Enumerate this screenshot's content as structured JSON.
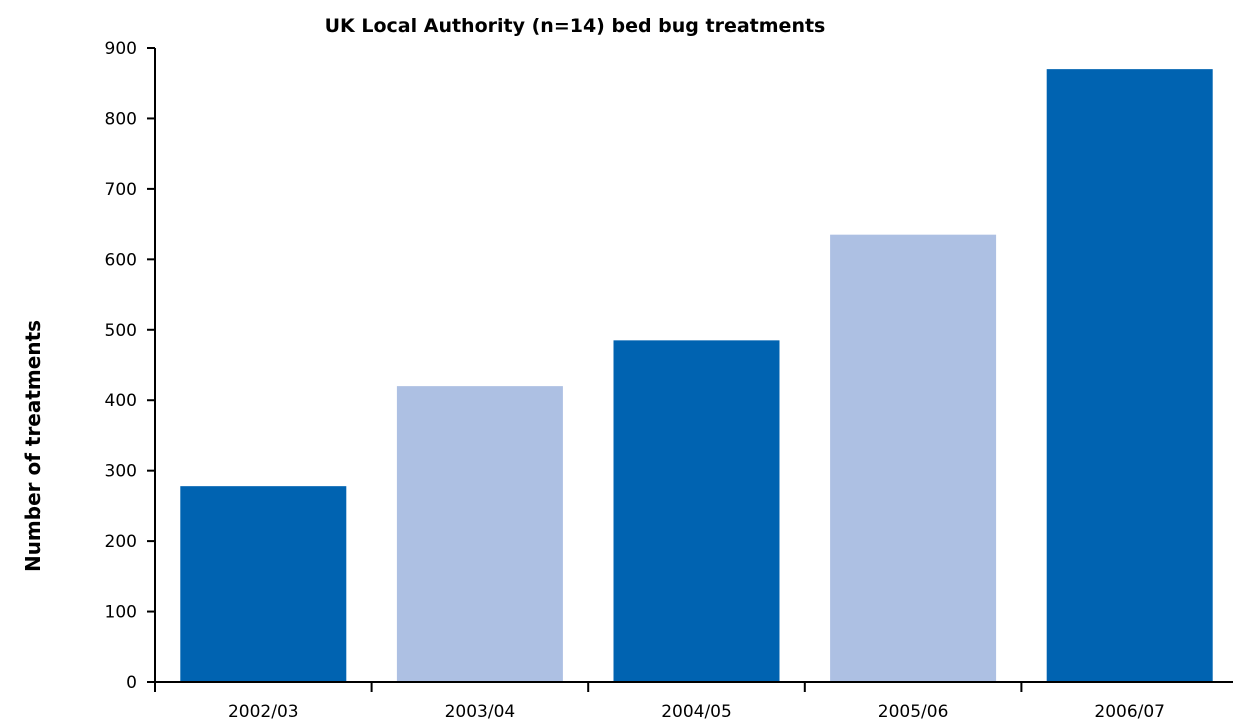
{
  "chart_data": {
    "type": "bar",
    "title": "UK Local Authority (n=14) bed bug treatments",
    "xlabel": "",
    "ylabel": "Number of treatments",
    "categories": [
      "2002/03",
      "2003/04",
      "2004/05",
      "2005/06",
      "2006/07"
    ],
    "values": [
      278,
      420,
      485,
      635,
      870
    ],
    "bar_colors": [
      "#0063b1",
      "#adc0e3",
      "#0063b1",
      "#adc0e3",
      "#0063b1"
    ],
    "ylim": [
      0,
      900
    ],
    "yticks": [
      0,
      100,
      200,
      300,
      400,
      500,
      600,
      700,
      800,
      900
    ],
    "grid": false,
    "legend": "none"
  }
}
